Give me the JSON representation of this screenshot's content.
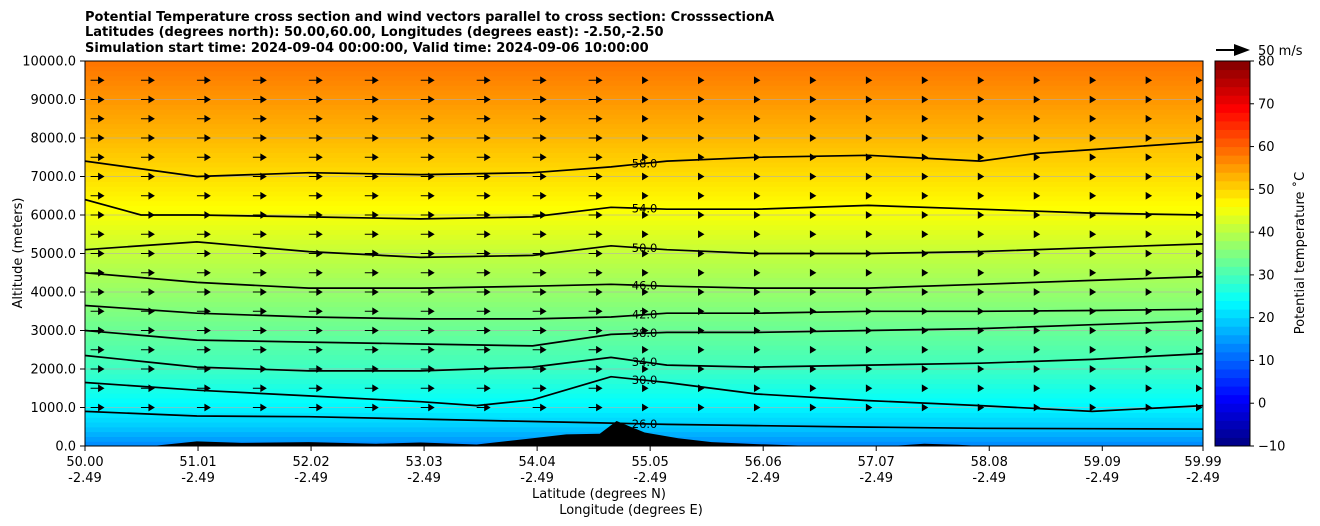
{
  "chart_data": {
    "type": "heatmap",
    "title_lines": [
      "Potential Temperature cross section and wind vectors parallel to cross section: CrosssectionA",
      "Latitudes (degrees north): 50.00,60.00, Longitudes (degrees east): -2.50,-2.50",
      "Simulation start time: 2024-09-04 00:00:00, Valid time: 2024-09-06 10:00:00"
    ],
    "xlabel_lines": [
      "Latitude (degrees N)",
      "Longitude (degrees E)"
    ],
    "ylabel": "Altitude (meters)",
    "xlim": [
      50.0,
      59.99
    ],
    "ylim": [
      0,
      10000
    ],
    "grid": true,
    "x_ticks": [
      {
        "value": 50.0,
        "lat": "50.00",
        "lon": "-2.49"
      },
      {
        "value": 51.01,
        "lat": "51.01",
        "lon": "-2.49"
      },
      {
        "value": 52.02,
        "lat": "52.02",
        "lon": "-2.49"
      },
      {
        "value": 53.03,
        "lat": "53.03",
        "lon": "-2.49"
      },
      {
        "value": 54.04,
        "lat": "54.04",
        "lon": "-2.49"
      },
      {
        "value": 55.05,
        "lat": "55.05",
        "lon": "-2.49"
      },
      {
        "value": 56.06,
        "lat": "56.06",
        "lon": "-2.49"
      },
      {
        "value": 57.07,
        "lat": "57.07",
        "lon": "-2.49"
      },
      {
        "value": 58.08,
        "lat": "58.08",
        "lon": "-2.49"
      },
      {
        "value": 59.09,
        "lat": "59.09",
        "lon": "-2.49"
      },
      {
        "value": 59.99,
        "lat": "59.99",
        "lon": "-2.49"
      }
    ],
    "y_ticks": [
      {
        "value": 0,
        "label": "0.0"
      },
      {
        "value": 1000,
        "label": "1000.0"
      },
      {
        "value": 2000,
        "label": "2000.0"
      },
      {
        "value": 3000,
        "label": "3000.0"
      },
      {
        "value": 4000,
        "label": "4000.0"
      },
      {
        "value": 5000,
        "label": "5000.0"
      },
      {
        "value": 6000,
        "label": "6000.0"
      },
      {
        "value": 7000,
        "label": "7000.0"
      },
      {
        "value": 8000,
        "label": "8000.0"
      },
      {
        "value": 9000,
        "label": "9000.0"
      },
      {
        "value": 10000,
        "label": "10000.0"
      }
    ],
    "colorbar": {
      "label": "Potential temperature $^\\circ$C",
      "label_display": "Potential temperature ˚C",
      "range": [
        -10,
        80
      ],
      "colormap": "jet",
      "ticks": [
        {
          "value": -10,
          "label": "−10"
        },
        {
          "value": 0,
          "label": "0"
        },
        {
          "value": 10,
          "label": "10"
        },
        {
          "value": 20,
          "label": "20"
        },
        {
          "value": 30,
          "label": "30"
        },
        {
          "value": 40,
          "label": "40"
        },
        {
          "value": 50,
          "label": "50"
        },
        {
          "value": 60,
          "label": "60"
        },
        {
          "value": 70,
          "label": "70"
        },
        {
          "value": 80,
          "label": "80"
        }
      ]
    },
    "quiver_key": {
      "label": "50 m/s",
      "speed": 50
    },
    "theta_profile": [
      {
        "z": 0,
        "t": 13
      },
      {
        "z": 500,
        "t": 19
      },
      {
        "z": 1000,
        "t": 23
      },
      {
        "z": 2000,
        "t": 29
      },
      {
        "z": 3000,
        "t": 33
      },
      {
        "z": 4000,
        "t": 37
      },
      {
        "z": 5000,
        "t": 41
      },
      {
        "z": 6000,
        "t": 45.5
      },
      {
        "z": 7000,
        "t": 49
      },
      {
        "z": 8000,
        "t": 52.5
      },
      {
        "z": 9000,
        "t": 55.5
      },
      {
        "z": 10000,
        "t": 58.5
      }
    ],
    "contours": [
      {
        "value": 26,
        "label": "26.0",
        "label_lat": 55.0,
        "points": [
          [
            50.0,
            900
          ],
          [
            51.0,
            780
          ],
          [
            52.0,
            760
          ],
          [
            53.0,
            700
          ],
          [
            53.8,
            650
          ],
          [
            54.6,
            600
          ],
          [
            55.2,
            560
          ],
          [
            56.0,
            530
          ],
          [
            57.0,
            490
          ],
          [
            58.0,
            460
          ],
          [
            59.0,
            450
          ],
          [
            59.99,
            440
          ]
        ]
      },
      {
        "value": 30,
        "label": "30.0",
        "label_lat": 55.0,
        "points": [
          [
            50.0,
            1650
          ],
          [
            51.0,
            1450
          ],
          [
            52.0,
            1300
          ],
          [
            53.0,
            1150
          ],
          [
            53.5,
            1050
          ],
          [
            54.0,
            1200
          ],
          [
            54.7,
            1800
          ],
          [
            55.2,
            1650
          ],
          [
            56.0,
            1350
          ],
          [
            57.0,
            1180
          ],
          [
            58.0,
            1050
          ],
          [
            59.0,
            900
          ],
          [
            59.99,
            1050
          ]
        ]
      },
      {
        "value": 34,
        "label": "34.0",
        "label_lat": 55.0,
        "points": [
          [
            50.0,
            2350
          ],
          [
            51.0,
            2050
          ],
          [
            52.0,
            1950
          ],
          [
            53.0,
            1950
          ],
          [
            54.0,
            2050
          ],
          [
            54.7,
            2300
          ],
          [
            55.2,
            2100
          ],
          [
            56.0,
            2050
          ],
          [
            57.0,
            2100
          ],
          [
            58.0,
            2150
          ],
          [
            59.0,
            2250
          ],
          [
            59.99,
            2400
          ]
        ]
      },
      {
        "value": 38,
        "label": "38.0",
        "label_lat": 55.0,
        "points": [
          [
            50.0,
            3000
          ],
          [
            51.0,
            2750
          ],
          [
            52.0,
            2700
          ],
          [
            53.0,
            2650
          ],
          [
            54.0,
            2600
          ],
          [
            54.7,
            2900
          ],
          [
            55.2,
            2950
          ],
          [
            56.0,
            2950
          ],
          [
            57.0,
            3000
          ],
          [
            58.0,
            3050
          ],
          [
            59.0,
            3150
          ],
          [
            59.99,
            3250
          ]
        ]
      },
      {
        "value": 42,
        "label": "42.0",
        "label_lat": 55.0,
        "points": [
          [
            50.0,
            3650
          ],
          [
            51.0,
            3450
          ],
          [
            52.0,
            3350
          ],
          [
            53.0,
            3300
          ],
          [
            54.0,
            3300
          ],
          [
            54.7,
            3350
          ],
          [
            55.2,
            3450
          ],
          [
            56.0,
            3450
          ],
          [
            57.0,
            3500
          ],
          [
            58.0,
            3500
          ],
          [
            59.0,
            3520
          ],
          [
            59.99,
            3550
          ]
        ]
      },
      {
        "value": 46,
        "label": "46.0",
        "label_lat": 55.0,
        "points": [
          [
            50.0,
            4500
          ],
          [
            51.0,
            4250
          ],
          [
            52.0,
            4100
          ],
          [
            53.0,
            4100
          ],
          [
            54.0,
            4150
          ],
          [
            54.7,
            4200
          ],
          [
            55.2,
            4150
          ],
          [
            56.0,
            4100
          ],
          [
            57.0,
            4100
          ],
          [
            58.0,
            4200
          ],
          [
            59.0,
            4300
          ],
          [
            59.99,
            4400
          ]
        ]
      },
      {
        "value": 50,
        "label": "50.0",
        "label_lat": 55.0,
        "points": [
          [
            50.0,
            5100
          ],
          [
            51.0,
            5300
          ],
          [
            52.0,
            5050
          ],
          [
            53.0,
            4900
          ],
          [
            54.0,
            4950
          ],
          [
            54.7,
            5200
          ],
          [
            55.2,
            5100
          ],
          [
            56.0,
            5000
          ],
          [
            57.0,
            5000
          ],
          [
            58.0,
            5050
          ],
          [
            59.0,
            5150
          ],
          [
            59.99,
            5250
          ]
        ]
      },
      {
        "value": 54,
        "label": "54.0",
        "label_lat": 55.0,
        "points": [
          [
            50.0,
            6400
          ],
          [
            50.5,
            6000
          ],
          [
            51.0,
            6000
          ],
          [
            52.0,
            5950
          ],
          [
            53.0,
            5900
          ],
          [
            54.0,
            5950
          ],
          [
            54.7,
            6200
          ],
          [
            55.2,
            6150
          ],
          [
            56.0,
            6150
          ],
          [
            57.0,
            6250
          ],
          [
            58.0,
            6150
          ],
          [
            59.0,
            6050
          ],
          [
            59.99,
            6000
          ]
        ]
      },
      {
        "value": 58,
        "label": "58.0",
        "label_lat": 55.0,
        "points": [
          [
            50.0,
            7400
          ],
          [
            51.0,
            7000
          ],
          [
            52.0,
            7100
          ],
          [
            53.0,
            7050
          ],
          [
            54.0,
            7100
          ],
          [
            54.7,
            7250
          ],
          [
            55.2,
            7400
          ],
          [
            56.0,
            7500
          ],
          [
            57.0,
            7550
          ],
          [
            58.0,
            7400
          ],
          [
            58.5,
            7600
          ],
          [
            59.0,
            7700
          ],
          [
            59.99,
            7900
          ]
        ]
      }
    ],
    "terrain": [
      [
        50.0,
        0
      ],
      [
        50.6,
        0
      ],
      [
        51.0,
        120
      ],
      [
        51.4,
        80
      ],
      [
        52.0,
        100
      ],
      [
        52.6,
        60
      ],
      [
        53.0,
        90
      ],
      [
        53.5,
        40
      ],
      [
        54.0,
        200
      ],
      [
        54.3,
        300
      ],
      [
        54.6,
        320
      ],
      [
        54.75,
        650
      ],
      [
        55.0,
        350
      ],
      [
        55.3,
        200
      ],
      [
        55.6,
        100
      ],
      [
        56.0,
        50
      ],
      [
        56.5,
        0
      ],
      [
        57.2,
        0
      ],
      [
        57.5,
        60
      ],
      [
        57.8,
        30
      ],
      [
        58.0,
        0
      ],
      [
        59.99,
        0
      ]
    ],
    "wind_vector_rows_z": [
      9500,
      9000,
      8500,
      8000,
      7500,
      7000,
      6500,
      6000,
      5500,
      5000,
      4500,
      4000,
      3500,
      3000,
      2500,
      2000,
      1500,
      1000
    ],
    "wind_vector_columns_lat": [
      50.05,
      50.5,
      51.0,
      51.5,
      52.0,
      52.5,
      53.0,
      53.5,
      54.0,
      54.5,
      55.0,
      55.5,
      56.0,
      56.5,
      57.0,
      57.5,
      58.0,
      58.5,
      59.0,
      59.5,
      59.95
    ]
  }
}
